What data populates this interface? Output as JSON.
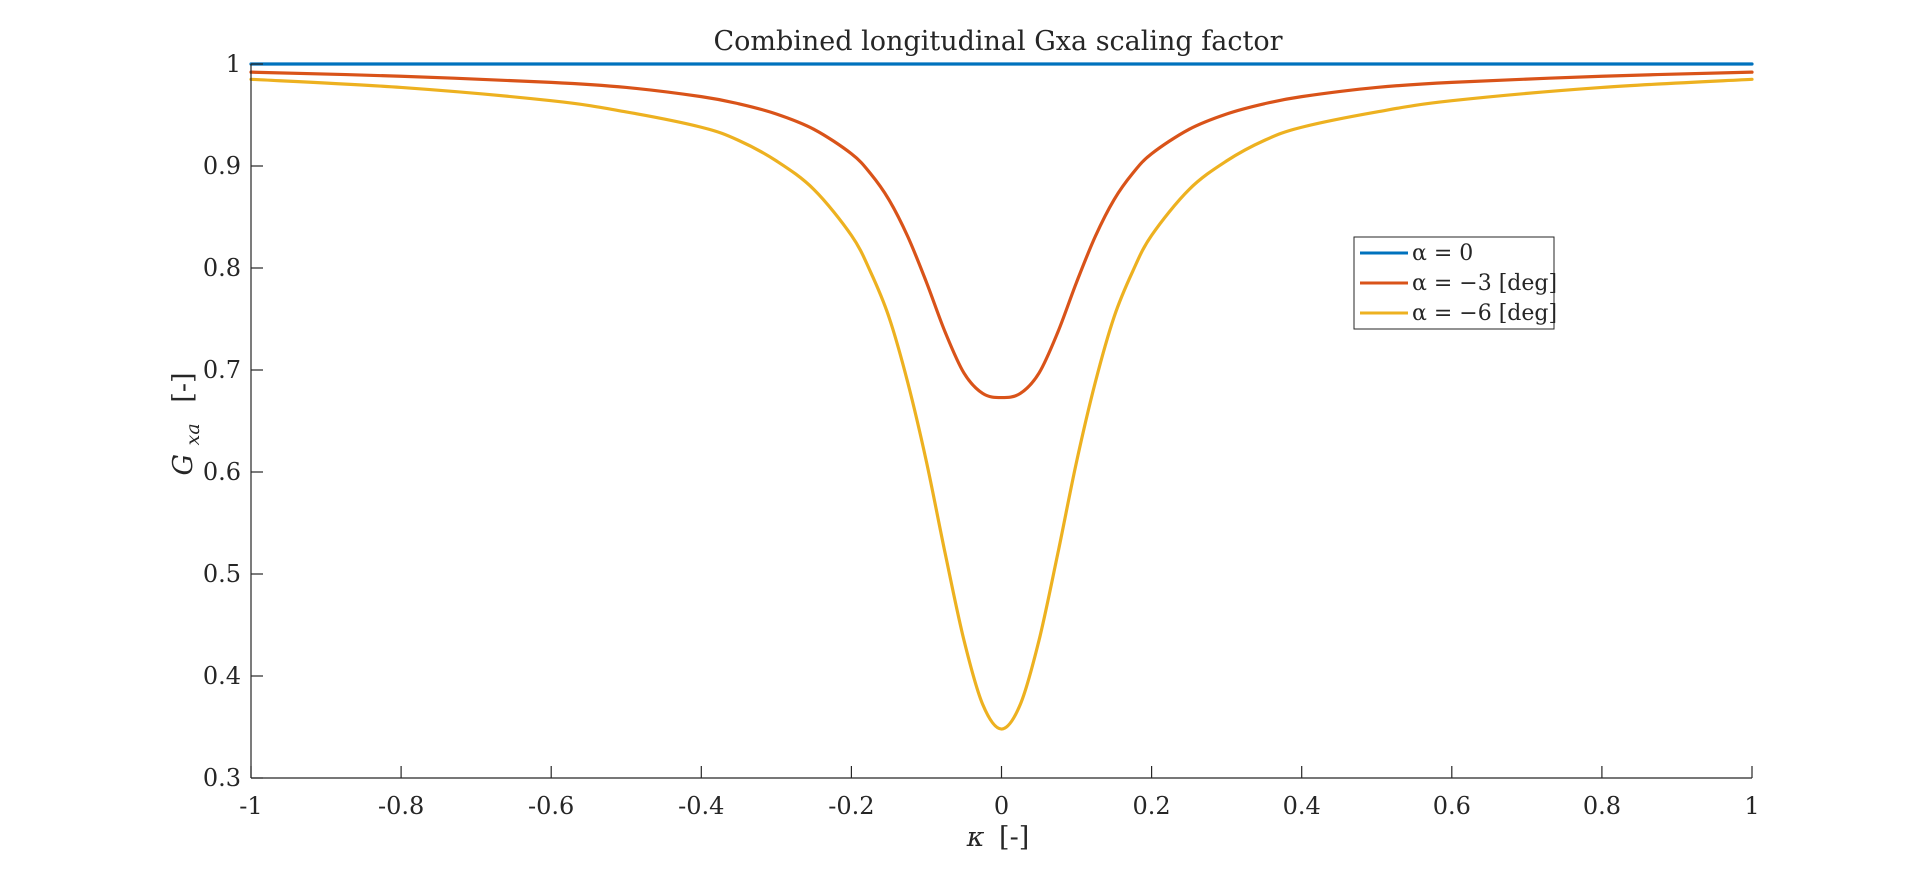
{
  "chart_data": {
    "type": "line",
    "title": "Combined longitudinal Gxa scaling factor",
    "xlabel": {
      "symbol": "κ",
      "unit": "[-]"
    },
    "ylabel": {
      "symbol": "G",
      "subscript": "xa",
      "unit": "[-]"
    },
    "xlim": [
      -1,
      1
    ],
    "ylim": [
      0.3,
      1
    ],
    "xticks": [
      -1,
      -0.8,
      -0.6,
      -0.4,
      -0.2,
      0,
      0.2,
      0.4,
      0.6,
      0.8,
      1
    ],
    "xtick_labels": [
      "-1",
      "-0.8",
      "-0.6",
      "-0.4",
      "-0.2",
      "0",
      "0.2",
      "0.4",
      "0.6",
      "0.8",
      "1"
    ],
    "yticks": [
      0.3,
      0.4,
      0.5,
      0.6,
      0.7,
      0.8,
      0.9,
      1
    ],
    "ytick_labels": [
      "0.3",
      "0.4",
      "0.5",
      "0.6",
      "0.7",
      "0.8",
      "0.9",
      "1"
    ],
    "grid": false,
    "legend_position": "upper-right, inside axes",
    "series": [
      {
        "name": "α = 0",
        "color": "#0072BD",
        "x": [
          -1,
          1
        ],
        "y": [
          1,
          1
        ]
      },
      {
        "name": "α = −3 [deg]",
        "color": "#D95319",
        "x": [
          -1,
          -0.8,
          -0.6,
          -0.5,
          -0.4,
          -0.35,
          -0.3,
          -0.25,
          -0.2,
          -0.175,
          -0.15,
          -0.125,
          -0.1,
          -0.075,
          -0.05,
          -0.025,
          0,
          0.025,
          0.05,
          0.075,
          0.1,
          0.125,
          0.15,
          0.175,
          0.2,
          0.25,
          0.3,
          0.35,
          0.4,
          0.5,
          0.6,
          0.8,
          1
        ],
        "y": [
          0.992,
          0.988,
          0.982,
          0.977,
          0.968,
          0.961,
          0.951,
          0.936,
          0.912,
          0.893,
          0.867,
          0.831,
          0.786,
          0.737,
          0.697,
          0.677,
          0.673,
          0.677,
          0.697,
          0.737,
          0.786,
          0.831,
          0.867,
          0.893,
          0.912,
          0.936,
          0.951,
          0.961,
          0.968,
          0.977,
          0.982,
          0.988,
          0.992
        ]
      },
      {
        "name": "α = −6 [deg]",
        "color": "#EDB120",
        "x": [
          -1,
          -0.8,
          -0.6,
          -0.5,
          -0.4,
          -0.35,
          -0.3,
          -0.25,
          -0.2,
          -0.175,
          -0.15,
          -0.125,
          -0.1,
          -0.075,
          -0.05,
          -0.025,
          0,
          0.025,
          0.05,
          0.075,
          0.1,
          0.125,
          0.15,
          0.175,
          0.2,
          0.25,
          0.3,
          0.35,
          0.4,
          0.5,
          0.6,
          0.8,
          1
        ],
        "y": [
          0.985,
          0.977,
          0.964,
          0.953,
          0.938,
          0.925,
          0.905,
          0.877,
          0.832,
          0.797,
          0.752,
          0.688,
          0.61,
          0.52,
          0.435,
          0.372,
          0.348,
          0.372,
          0.435,
          0.52,
          0.61,
          0.688,
          0.752,
          0.797,
          0.832,
          0.877,
          0.905,
          0.925,
          0.938,
          0.953,
          0.964,
          0.977,
          0.985
        ]
      }
    ]
  }
}
